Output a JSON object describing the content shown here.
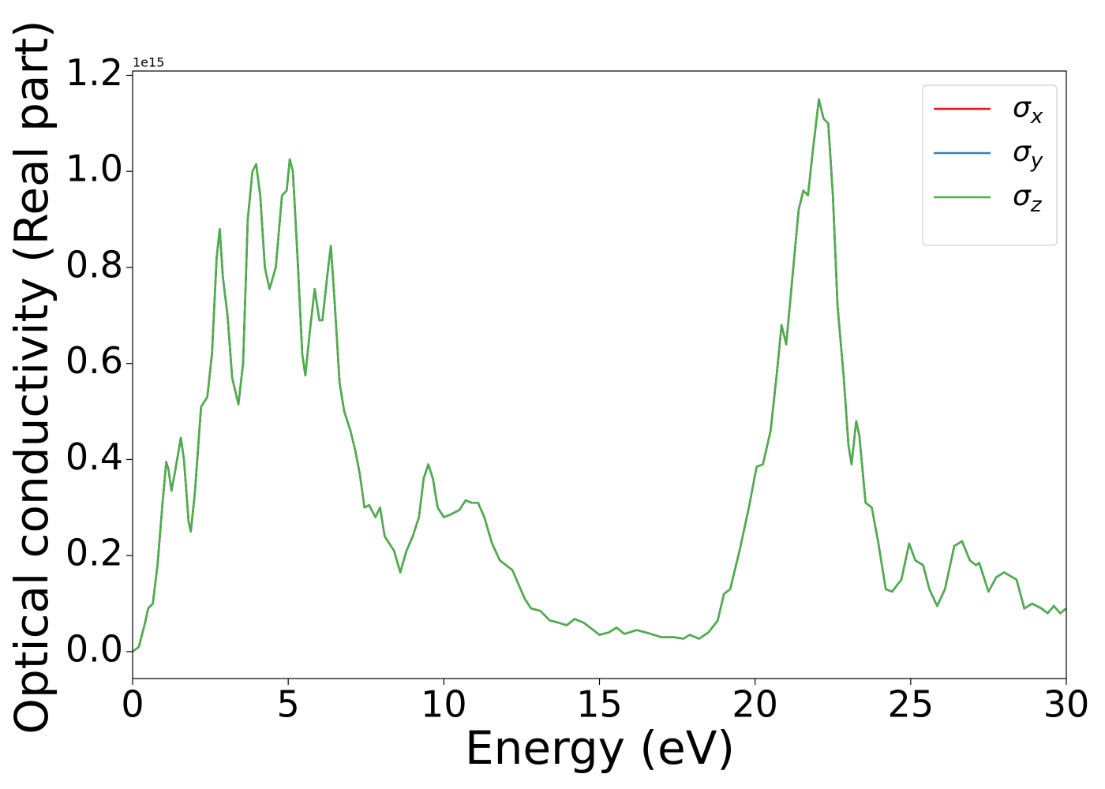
{
  "chart_data": {
    "type": "line",
    "x_label": "Energy (eV)",
    "y_label": "Optical conductivity (Real part)",
    "y_offset_label": "1e15",
    "x": [
      0,
      0.2,
      0.4,
      0.5,
      0.65,
      0.8,
      0.95,
      1.08,
      1.15,
      1.25,
      1.35,
      1.55,
      1.65,
      1.8,
      1.87,
      2.0,
      2.2,
      2.4,
      2.55,
      2.7,
      2.8,
      2.9,
      3.05,
      3.2,
      3.4,
      3.55,
      3.7,
      3.85,
      3.97,
      4.1,
      4.25,
      4.4,
      4.6,
      4.8,
      4.95,
      5.05,
      5.15,
      5.3,
      5.45,
      5.55,
      5.7,
      5.85,
      6.0,
      6.1,
      6.25,
      6.37,
      6.5,
      6.65,
      6.8,
      7.0,
      7.15,
      7.3,
      7.45,
      7.6,
      7.8,
      7.95,
      8.1,
      8.25,
      8.4,
      8.6,
      8.8,
      9.0,
      9.2,
      9.35,
      9.5,
      9.65,
      9.8,
      10.0,
      10.2,
      10.5,
      10.7,
      10.9,
      11.1,
      11.3,
      11.55,
      11.8,
      12.0,
      12.2,
      12.4,
      12.6,
      12.8,
      13.1,
      13.4,
      13.7,
      13.95,
      14.2,
      14.5,
      14.8,
      15.0,
      15.3,
      15.55,
      15.8,
      16.2,
      16.6,
      17.0,
      17.4,
      17.7,
      17.9,
      18.2,
      18.5,
      18.8,
      19.0,
      19.2,
      19.5,
      19.8,
      20.05,
      20.25,
      20.5,
      20.7,
      20.85,
      21.0,
      21.2,
      21.4,
      21.55,
      21.7,
      21.85,
      22.05,
      22.2,
      22.35,
      22.5,
      22.65,
      22.85,
      23.0,
      23.1,
      23.25,
      23.35,
      23.55,
      23.75,
      23.95,
      24.2,
      24.4,
      24.7,
      24.95,
      25.15,
      25.4,
      25.6,
      25.85,
      26.1,
      26.4,
      26.65,
      26.9,
      27.1,
      27.2,
      27.5,
      27.75,
      28.0,
      28.4,
      28.65,
      28.9,
      29.2,
      29.4,
      29.6,
      29.8,
      30.0
    ],
    "series": [
      {
        "name": "σx",
        "color": "#e41a1c",
        "values": [
          0,
          0.01,
          0.06,
          0.09,
          0.1,
          0.18,
          0.3,
          0.395,
          0.38,
          0.335,
          0.37,
          0.445,
          0.4,
          0.27,
          0.25,
          0.33,
          0.51,
          0.53,
          0.62,
          0.82,
          0.88,
          0.78,
          0.7,
          0.57,
          0.515,
          0.6,
          0.9,
          1.0,
          1.015,
          0.95,
          0.8,
          0.755,
          0.8,
          0.95,
          0.96,
          1.025,
          1.0,
          0.82,
          0.62,
          0.575,
          0.67,
          0.755,
          0.69,
          0.69,
          0.78,
          0.845,
          0.72,
          0.56,
          0.5,
          0.46,
          0.42,
          0.37,
          0.3,
          0.305,
          0.28,
          0.3,
          0.24,
          0.225,
          0.21,
          0.165,
          0.21,
          0.24,
          0.28,
          0.36,
          0.39,
          0.36,
          0.3,
          0.28,
          0.285,
          0.295,
          0.315,
          0.31,
          0.31,
          0.28,
          0.225,
          0.19,
          0.18,
          0.17,
          0.14,
          0.11,
          0.09,
          0.085,
          0.065,
          0.06,
          0.055,
          0.068,
          0.06,
          0.045,
          0.035,
          0.04,
          0.05,
          0.037,
          0.045,
          0.038,
          0.03,
          0.03,
          0.027,
          0.035,
          0.027,
          0.04,
          0.065,
          0.12,
          0.13,
          0.21,
          0.3,
          0.385,
          0.39,
          0.46,
          0.58,
          0.68,
          0.64,
          0.78,
          0.92,
          0.96,
          0.95,
          1.04,
          1.15,
          1.11,
          1.1,
          0.95,
          0.72,
          0.57,
          0.43,
          0.39,
          0.48,
          0.45,
          0.31,
          0.3,
          0.23,
          0.13,
          0.125,
          0.15,
          0.225,
          0.19,
          0.18,
          0.13,
          0.095,
          0.13,
          0.22,
          0.23,
          0.19,
          0.18,
          0.185,
          0.125,
          0.155,
          0.165,
          0.15,
          0.09,
          0.1,
          0.09,
          0.08,
          0.095,
          0.08,
          0.09
        ]
      },
      {
        "name": "σy",
        "color": "#377eb8",
        "values": [
          0,
          0.01,
          0.06,
          0.09,
          0.1,
          0.18,
          0.3,
          0.395,
          0.38,
          0.335,
          0.37,
          0.445,
          0.4,
          0.27,
          0.25,
          0.33,
          0.51,
          0.53,
          0.62,
          0.82,
          0.88,
          0.78,
          0.7,
          0.57,
          0.515,
          0.6,
          0.9,
          1.0,
          1.015,
          0.95,
          0.8,
          0.755,
          0.8,
          0.95,
          0.96,
          1.025,
          1.0,
          0.82,
          0.62,
          0.575,
          0.67,
          0.755,
          0.69,
          0.69,
          0.78,
          0.845,
          0.72,
          0.56,
          0.5,
          0.46,
          0.42,
          0.37,
          0.3,
          0.305,
          0.28,
          0.3,
          0.24,
          0.225,
          0.21,
          0.165,
          0.21,
          0.24,
          0.28,
          0.36,
          0.39,
          0.36,
          0.3,
          0.28,
          0.285,
          0.295,
          0.315,
          0.31,
          0.31,
          0.28,
          0.225,
          0.19,
          0.18,
          0.17,
          0.14,
          0.11,
          0.09,
          0.085,
          0.065,
          0.06,
          0.055,
          0.068,
          0.06,
          0.045,
          0.035,
          0.04,
          0.05,
          0.037,
          0.045,
          0.038,
          0.03,
          0.03,
          0.027,
          0.035,
          0.027,
          0.04,
          0.065,
          0.12,
          0.13,
          0.21,
          0.3,
          0.385,
          0.39,
          0.46,
          0.58,
          0.68,
          0.64,
          0.78,
          0.92,
          0.96,
          0.95,
          1.04,
          1.15,
          1.11,
          1.1,
          0.95,
          0.72,
          0.57,
          0.43,
          0.39,
          0.48,
          0.45,
          0.31,
          0.3,
          0.23,
          0.13,
          0.125,
          0.15,
          0.225,
          0.19,
          0.18,
          0.13,
          0.095,
          0.13,
          0.22,
          0.23,
          0.19,
          0.18,
          0.185,
          0.125,
          0.155,
          0.165,
          0.15,
          0.09,
          0.1,
          0.09,
          0.08,
          0.095,
          0.08,
          0.09
        ]
      },
      {
        "name": "σz",
        "color": "#4daf4a",
        "values": [
          0,
          0.01,
          0.06,
          0.09,
          0.1,
          0.18,
          0.3,
          0.395,
          0.38,
          0.335,
          0.37,
          0.445,
          0.4,
          0.27,
          0.25,
          0.33,
          0.51,
          0.53,
          0.62,
          0.82,
          0.88,
          0.78,
          0.7,
          0.57,
          0.515,
          0.6,
          0.9,
          1.0,
          1.015,
          0.95,
          0.8,
          0.755,
          0.8,
          0.95,
          0.96,
          1.025,
          1.0,
          0.82,
          0.62,
          0.575,
          0.67,
          0.755,
          0.69,
          0.69,
          0.78,
          0.845,
          0.72,
          0.56,
          0.5,
          0.46,
          0.42,
          0.37,
          0.3,
          0.305,
          0.28,
          0.3,
          0.24,
          0.225,
          0.21,
          0.165,
          0.21,
          0.24,
          0.28,
          0.36,
          0.39,
          0.36,
          0.3,
          0.28,
          0.285,
          0.295,
          0.315,
          0.31,
          0.31,
          0.28,
          0.225,
          0.19,
          0.18,
          0.17,
          0.14,
          0.11,
          0.09,
          0.085,
          0.065,
          0.06,
          0.055,
          0.068,
          0.06,
          0.045,
          0.035,
          0.04,
          0.05,
          0.037,
          0.045,
          0.038,
          0.03,
          0.03,
          0.027,
          0.035,
          0.027,
          0.04,
          0.065,
          0.12,
          0.13,
          0.21,
          0.3,
          0.385,
          0.39,
          0.46,
          0.58,
          0.68,
          0.64,
          0.78,
          0.92,
          0.96,
          0.95,
          1.04,
          1.15,
          1.11,
          1.1,
          0.95,
          0.72,
          0.57,
          0.43,
          0.39,
          0.48,
          0.45,
          0.31,
          0.3,
          0.23,
          0.13,
          0.125,
          0.15,
          0.225,
          0.19,
          0.18,
          0.13,
          0.095,
          0.13,
          0.22,
          0.23,
          0.19,
          0.18,
          0.185,
          0.125,
          0.155,
          0.165,
          0.15,
          0.09,
          0.1,
          0.09,
          0.08,
          0.095,
          0.08,
          0.09
        ]
      }
    ],
    "xlim": [
      0,
      30
    ],
    "xticks": [
      0,
      5,
      10,
      15,
      20,
      25,
      30
    ],
    "ylim": [
      -0.056,
      1.209
    ],
    "yticks": [
      {
        "value": 0,
        "label": "0.0"
      },
      0.2,
      0.4,
      0.6,
      0.8,
      {
        "value": 1,
        "label": "1.0"
      },
      1.2
    ],
    "grid": false,
    "legend": "upper right"
  }
}
